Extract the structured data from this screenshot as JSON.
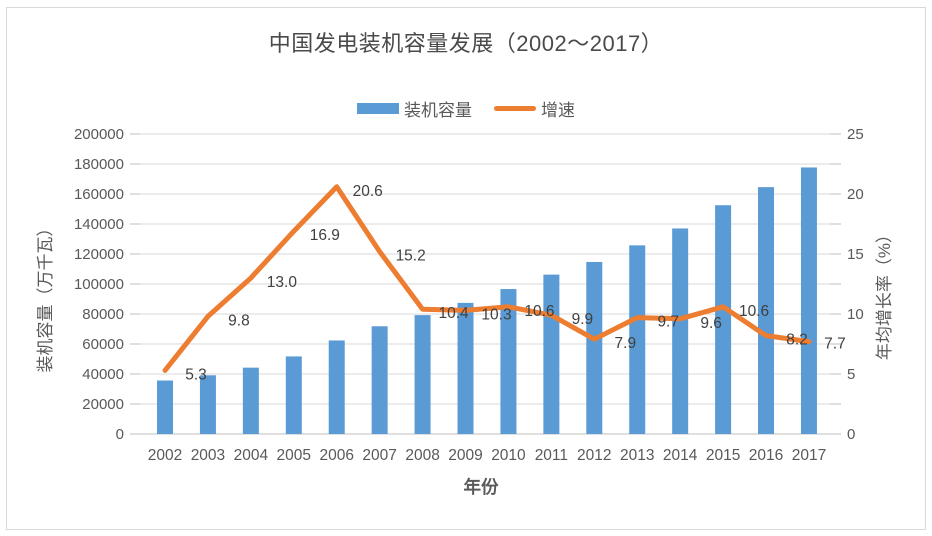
{
  "chart_data": {
    "type": "bar+line",
    "title": "中国发电装机容量发展（2002～2017）",
    "xlabel": "年份",
    "categories": [
      "2002",
      "2003",
      "2004",
      "2005",
      "2006",
      "2007",
      "2008",
      "2009",
      "2010",
      "2011",
      "2012",
      "2013",
      "2014",
      "2015",
      "2016",
      "2017"
    ],
    "series": [
      {
        "name": "装机容量",
        "chart": "bar",
        "axis": "left",
        "unit": "万千瓦",
        "color": "#5B9BD5",
        "values": [
          35657,
          39141,
          44239,
          51718,
          62370,
          71822,
          79273,
          87410,
          96641,
          106253,
          114676,
          125768,
          137018,
          152527,
          164575,
          177703
        ]
      },
      {
        "name": "增速",
        "chart": "line",
        "axis": "right",
        "unit": "%",
        "color": "#ED7D31",
        "values": [
          5.3,
          9.8,
          13.0,
          16.9,
          20.6,
          15.2,
          10.4,
          10.3,
          10.6,
          9.9,
          7.9,
          9.7,
          9.6,
          10.6,
          8.2,
          7.7
        ],
        "data_labels": [
          "5.3",
          "9.8",
          "13.0",
          "16.9",
          "20.6",
          "15.2",
          "10.4",
          "10.3",
          "10.6",
          "9.9",
          "7.9",
          "9.7",
          "9.6",
          "10.6",
          "8.2",
          "7.7"
        ]
      }
    ],
    "left_axis": {
      "title": "装机容量（万千瓦）",
      "min": 0,
      "max": 200000,
      "step": 20000,
      "tick_labels": [
        "0",
        "20000",
        "40000",
        "60000",
        "80000",
        "100000",
        "120000",
        "140000",
        "160000",
        "180000",
        "200000"
      ]
    },
    "right_axis": {
      "title": "年均增长率（%）",
      "min": 0,
      "max": 25,
      "step": 5,
      "tick_labels": [
        "0",
        "5",
        "10",
        "15",
        "20",
        "25"
      ]
    },
    "legend": {
      "position": "top",
      "items": [
        {
          "label": "装机容量",
          "marker": "rect",
          "color": "#5B9BD5"
        },
        {
          "label": "增速",
          "marker": "line",
          "color": "#ED7D31"
        }
      ]
    },
    "grid": "horizontal",
    "colors": {
      "bar": "#5B9BD5",
      "line": "#ED7D31",
      "grid": "#D9D9D9",
      "baseline": "#BFBFBF",
      "tick": "#BFBFBF",
      "axis_text": "#595959",
      "data_label_text": "#404040",
      "border": "#D9D9D9",
      "background": "#FFFFFF"
    }
  }
}
